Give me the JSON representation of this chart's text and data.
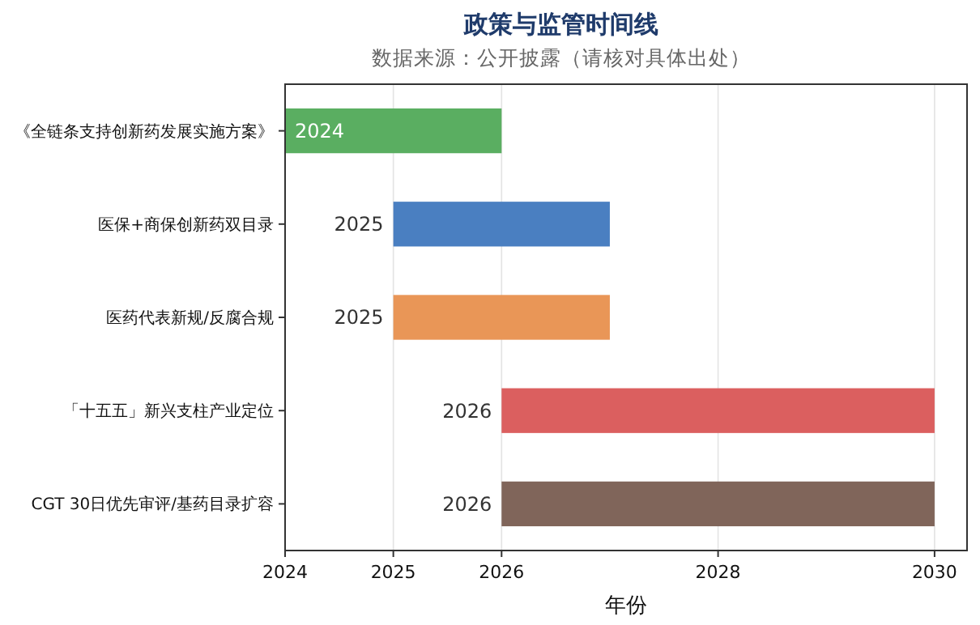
{
  "chart_data": {
    "type": "bar",
    "orientation": "horizontal",
    "title": "政策与监管时间线",
    "subtitle": "数据来源：公开披露（请核对具体出处）",
    "xlabel": "年份",
    "categories": [
      "《全链条支持创新药发展实施方案》",
      "医保+商保创新药双目录",
      "医药代表新规/反腐合规",
      "「十五五」新兴支柱产业定位",
      "CGT 30日优先审评/基药目录扩容"
    ],
    "base": [
      2024,
      2025,
      2025,
      2026,
      2026
    ],
    "values": [
      2,
      2,
      2,
      4,
      4
    ],
    "colors": [
      "#5aae61",
      "#4a7fc1",
      "#e99657",
      "#db5f5f",
      "#80655a"
    ],
    "annotations": [
      {
        "text": "2024",
        "x": 2024,
        "y": "《全链条支持创新药发展实施方案》"
      },
      {
        "text": "2025",
        "x": 2025,
        "y": "医保+商保创新药双目录"
      },
      {
        "text": "2025",
        "x": 2025,
        "y": "医药代表新规/反腐合规"
      },
      {
        "text": "2026",
        "x": 2026,
        "y": "「十五五」新兴支柱产业定位"
      },
      {
        "text": "2026",
        "x": 2026,
        "y": "CGT 30日优先审评/基药目录扩容"
      }
    ],
    "xlim": [
      2024,
      2030.3
    ],
    "xticks": [
      2024,
      2025,
      2026,
      2028,
      2030
    ],
    "grid": "x"
  }
}
